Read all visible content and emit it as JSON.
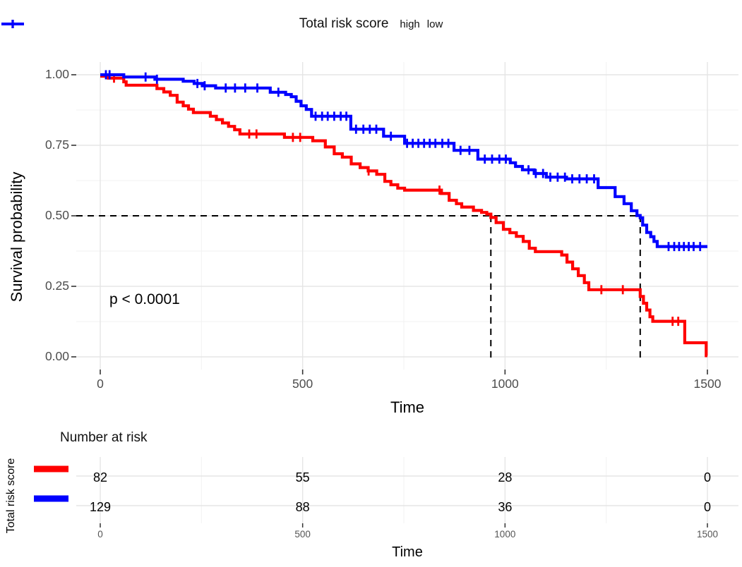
{
  "legend": {
    "title": "Total risk score",
    "items": [
      {
        "label": "high",
        "color": "#FF0000"
      },
      {
        "label": "low",
        "color": "#0000FF"
      }
    ]
  },
  "annotation": {
    "p_value": "p < 0.0001"
  },
  "colors": {
    "high": "#FF0000",
    "low": "#0000FF",
    "grid_major": "#E5E5E5",
    "grid_minor": "#F2F2F2",
    "tick_text": "#4d4d4d",
    "dashed_line": "#000000"
  },
  "chart_data": {
    "type": "line",
    "subtype": "kaplan-meier-step-survival",
    "title": "",
    "xlabel": "Time",
    "ylabel": "Survival probability",
    "xlim": [
      0,
      1500
    ],
    "ylim": [
      0,
      1
    ],
    "x_ticks": [
      0,
      500,
      1000,
      1500
    ],
    "x_minor_ticks": [
      250,
      750,
      1250
    ],
    "y_ticks": [
      "1.00",
      "0.75",
      "0.50",
      "0.25",
      "0.00"
    ],
    "y_tick_values": [
      1.0,
      0.75,
      0.5,
      0.25,
      0.0
    ],
    "y_minor_tick_values": [
      0.875,
      0.625,
      0.375,
      0.125
    ],
    "grid": true,
    "legend_position": "top",
    "pvalue_text": "p < 0.0001",
    "median_reference_prob": 0.5,
    "median_survival": {
      "high": 965,
      "low": 1334
    },
    "series": [
      {
        "name": "high",
        "color": "#FF0000",
        "steps": [
          [
            0,
            0.995
          ],
          [
            20,
            0.988
          ],
          [
            58,
            0.975
          ],
          [
            64,
            0.963
          ],
          [
            140,
            0.951
          ],
          [
            157,
            0.939
          ],
          [
            173,
            0.927
          ],
          [
            190,
            0.903
          ],
          [
            205,
            0.89
          ],
          [
            218,
            0.878
          ],
          [
            230,
            0.866
          ],
          [
            272,
            0.853
          ],
          [
            287,
            0.841
          ],
          [
            302,
            0.829
          ],
          [
            317,
            0.817
          ],
          [
            332,
            0.805
          ],
          [
            345,
            0.79
          ],
          [
            455,
            0.778
          ],
          [
            525,
            0.766
          ],
          [
            556,
            0.744
          ],
          [
            578,
            0.72
          ],
          [
            598,
            0.708
          ],
          [
            620,
            0.684
          ],
          [
            642,
            0.671
          ],
          [
            662,
            0.659
          ],
          [
            683,
            0.647
          ],
          [
            703,
            0.622
          ],
          [
            718,
            0.61
          ],
          [
            735,
            0.598
          ],
          [
            752,
            0.591
          ],
          [
            843,
            0.579
          ],
          [
            862,
            0.555
          ],
          [
            880,
            0.543
          ],
          [
            893,
            0.531
          ],
          [
            922,
            0.519
          ],
          [
            942,
            0.512
          ],
          [
            955,
            0.506
          ],
          [
            965,
            0.494
          ],
          [
            978,
            0.476
          ],
          [
            996,
            0.452
          ],
          [
            1012,
            0.44
          ],
          [
            1028,
            0.427
          ],
          [
            1045,
            0.409
          ],
          [
            1060,
            0.385
          ],
          [
            1075,
            0.373
          ],
          [
            1140,
            0.361
          ],
          [
            1153,
            0.336
          ],
          [
            1167,
            0.312
          ],
          [
            1181,
            0.288
          ],
          [
            1196,
            0.263
          ],
          [
            1207,
            0.238
          ],
          [
            1334,
            0.214
          ],
          [
            1342,
            0.19
          ],
          [
            1350,
            0.166
          ],
          [
            1358,
            0.142
          ],
          [
            1365,
            0.126
          ],
          [
            1444,
            0.05
          ],
          [
            1497,
            0.004
          ],
          [
            1500,
            0.004
          ]
        ],
        "censor_times": [
          34,
          368,
          386,
          476,
          494,
          663,
          838,
          1238,
          1291,
          1414,
          1428
        ]
      },
      {
        "name": "low",
        "color": "#0000FF",
        "steps": [
          [
            0,
            1.0
          ],
          [
            58,
            0.992
          ],
          [
            135,
            0.984
          ],
          [
            205,
            0.977
          ],
          [
            232,
            0.969
          ],
          [
            252,
            0.961
          ],
          [
            285,
            0.953
          ],
          [
            420,
            0.938
          ],
          [
            458,
            0.93
          ],
          [
            472,
            0.922
          ],
          [
            484,
            0.906
          ],
          [
            496,
            0.89
          ],
          [
            509,
            0.877
          ],
          [
            522,
            0.853
          ],
          [
            619,
            0.807
          ],
          [
            700,
            0.782
          ],
          [
            752,
            0.757
          ],
          [
            874,
            0.732
          ],
          [
            933,
            0.701
          ],
          [
            1013,
            0.688
          ],
          [
            1026,
            0.675
          ],
          [
            1043,
            0.663
          ],
          [
            1072,
            0.65
          ],
          [
            1102,
            0.637
          ],
          [
            1152,
            0.631
          ],
          [
            1230,
            0.6
          ],
          [
            1272,
            0.568
          ],
          [
            1294,
            0.543
          ],
          [
            1312,
            0.518
          ],
          [
            1326,
            0.501
          ],
          [
            1334,
            0.493
          ],
          [
            1340,
            0.467
          ],
          [
            1350,
            0.441
          ],
          [
            1360,
            0.426
          ],
          [
            1368,
            0.409
          ],
          [
            1376,
            0.391
          ],
          [
            1500,
            0.391
          ]
        ],
        "censor_times": [
          14,
          23,
          112,
          140,
          240,
          258,
          310,
          333,
          358,
          388,
          440,
          532,
          548,
          562,
          578,
          594,
          608,
          632,
          650,
          666,
          682,
          718,
          758,
          772,
          786,
          800,
          814,
          828,
          845,
          860,
          890,
          912,
          950,
          968,
          986,
          1002,
          1058,
          1076,
          1094,
          1112,
          1130,
          1148,
          1166,
          1184,
          1202,
          1220,
          1404,
          1418,
          1430,
          1442,
          1454,
          1466,
          1482
        ]
      }
    ]
  },
  "risk_table": {
    "title": "Number at risk",
    "y_axis_label": "Total risk score",
    "x_label": "Time",
    "x_ticks": [
      0,
      500,
      1000,
      1500
    ],
    "rows": [
      {
        "group": "high",
        "color": "#FF0000",
        "counts": [
          82,
          55,
          28,
          0
        ]
      },
      {
        "group": "low",
        "color": "#0000FF",
        "counts": [
          129,
          88,
          36,
          0
        ]
      }
    ]
  }
}
